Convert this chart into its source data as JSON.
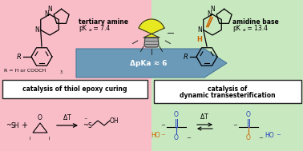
{
  "bg_left": "#f9bdc8",
  "bg_right": "#c8e8c0",
  "arrow_color": "#6b9ab8",
  "arrow_edge": "#4a7a98",
  "arrow_text": "ΔpKa ≈ 6",
  "left_title": "tertiary amine",
  "left_pka": "pK",
  "left_pka_sub": "a",
  "left_pka_val": " = 7.4",
  "right_title": "amidine base",
  "right_pka": "pK",
  "right_pka_sub": "a",
  "right_pka_val": " = 13.4",
  "left_box_text": "catalysis of thiol epoxy curing",
  "right_box_text1": "catalysis of",
  "right_box_text2": "dynamic transesterification",
  "r_label": "R = H or COOCH",
  "r_label_sub": "3",
  "box_color": "#ffffff",
  "box_edge": "#222222",
  "blue_color": "#2244bb",
  "orange_color": "#cc6600",
  "bulb_yellow": "#e8e820",
  "bulb_outline": "#333333",
  "ray_color": "#222222",
  "black": "#111111",
  "gray": "#888888",
  "delta_t": "ΔT"
}
